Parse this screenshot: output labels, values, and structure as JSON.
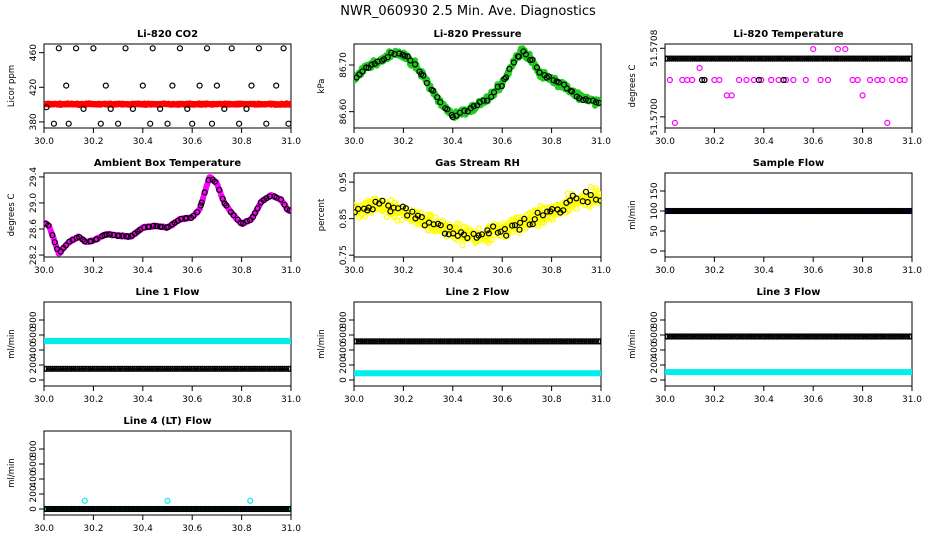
{
  "page": {
    "title": "NWR_060930  2.5 Min. Ave. Diagnostics"
  },
  "colors": {
    "black": "#000000",
    "red": "#ff0000",
    "green": "#22cc22",
    "magenta": "#ff00ff",
    "yellow": "#ffff00",
    "blue": "#0000cc",
    "cyan": "#00eeee"
  },
  "chart_data": [
    {
      "id": "co2",
      "type": "scatter",
      "title": "Li-820 CO2",
      "ylabel": "Licor ppm",
      "xlim": [
        30.0,
        31.0
      ],
      "ylim": [
        373,
        470
      ],
      "xticks": [
        "30.0",
        "30.2",
        "30.4",
        "30.6",
        "30.8",
        "31.0"
      ],
      "yticks": [
        {
          "v": 380,
          "label": "380"
        },
        {
          "v": 420,
          "label": "420"
        },
        {
          "v": 460,
          "label": "460"
        }
      ],
      "series": [
        {
          "name": "raw",
          "color": "red",
          "filled": true,
          "style": "band",
          "base": 400.5,
          "noise": 1.2,
          "n": 500
        },
        {
          "name": "ave",
          "color": "black",
          "filled": false,
          "style": "points",
          "x": [
            30.01,
            30.04,
            30.06,
            30.09,
            30.1,
            30.13,
            30.16,
            30.2,
            30.23,
            30.25,
            30.27,
            30.3,
            30.33,
            30.36,
            30.4,
            30.43,
            30.44,
            30.47,
            30.5,
            30.52,
            30.55,
            30.58,
            30.6,
            30.63,
            30.66,
            30.68,
            30.7,
            30.73,
            30.76,
            30.79,
            30.82,
            30.84,
            30.87,
            30.9,
            30.94,
            30.97,
            30.99
          ],
          "y": [
            397,
            378,
            465,
            422,
            378,
            465,
            395,
            465,
            378,
            422,
            395,
            378,
            465,
            395,
            422,
            378,
            465,
            395,
            378,
            422,
            465,
            395,
            378,
            422,
            465,
            378,
            422,
            395,
            465,
            378,
            395,
            422,
            465,
            378,
            422,
            465,
            378
          ]
        }
      ]
    },
    {
      "id": "pressure",
      "type": "scatter",
      "title": "Li-820 Pressure",
      "ylabel": "kPa",
      "xlim": [
        30.0,
        31.0
      ],
      "ylim": [
        86.565,
        86.745
      ],
      "xticks": [
        "30.0",
        "30.2",
        "30.4",
        "30.6",
        "30.8",
        "31.0"
      ],
      "yticks": [
        {
          "v": 86.6,
          "label": "86.60"
        },
        {
          "v": 86.7,
          "label": "86.70"
        }
      ],
      "series": [
        {
          "name": "raw",
          "color": "green",
          "filled": true,
          "style": "curve",
          "noise": 0.012,
          "n": 520,
          "knots_x": [
            30.0,
            30.05,
            30.1,
            30.15,
            30.2,
            30.25,
            30.3,
            30.35,
            30.4,
            30.45,
            30.5,
            30.55,
            30.6,
            30.65,
            30.68,
            30.72,
            30.75,
            30.8,
            30.85,
            30.9,
            30.95,
            31.0
          ],
          "knots_y": [
            86.67,
            86.695,
            86.705,
            86.725,
            86.72,
            86.7,
            86.66,
            86.62,
            86.59,
            86.6,
            86.615,
            86.63,
            86.66,
            86.71,
            86.73,
            86.71,
            86.685,
            86.67,
            86.655,
            86.635,
            86.625,
            86.62
          ]
        },
        {
          "name": "ave",
          "color": "black",
          "filled": false,
          "style": "curve",
          "noise": 0.006,
          "n": 75
        }
      ]
    },
    {
      "id": "temperature",
      "type": "scatter",
      "title": "Li-820 Temperature",
      "ylabel": "degrees C",
      "xlim": [
        30.0,
        31.0
      ],
      "ylim": [
        51.56987,
        51.57085
      ],
      "xticks": [
        "30.0",
        "30.2",
        "30.4",
        "30.6",
        "30.8",
        "31.0"
      ],
      "yticks": [
        {
          "v": 51.57,
          "label": "51.5700"
        },
        {
          "v": 51.5708,
          "label": "51.5708"
        }
      ],
      "series": [
        {
          "name": "raw",
          "color": "magenta",
          "filled": false,
          "style": "points",
          "x": [
            30.02,
            30.04,
            30.07,
            30.09,
            30.11,
            30.14,
            30.16,
            30.2,
            30.22,
            30.25,
            30.27,
            30.3,
            30.33,
            30.36,
            30.39,
            30.43,
            30.46,
            30.49,
            30.52,
            30.57,
            30.6,
            30.63,
            30.66,
            30.7,
            30.73,
            30.76,
            30.78,
            30.8,
            30.83,
            30.86,
            30.88,
            30.9,
            30.92,
            30.95,
            30.97
          ],
          "y": [
            51.57043,
            51.56993,
            51.57043,
            51.57043,
            51.57043,
            51.57057,
            51.57043,
            51.57043,
            51.57043,
            51.57025,
            51.57025,
            51.57043,
            51.57043,
            51.57043,
            51.57043,
            51.57043,
            51.57043,
            51.57043,
            51.57043,
            51.57043,
            51.57079,
            51.57043,
            51.57043,
            51.57079,
            51.57079,
            51.57043,
            51.57043,
            51.57025,
            51.57043,
            51.57043,
            51.57043,
            51.56993,
            51.57043,
            51.57043,
            51.57043
          ]
        },
        {
          "name": "ave",
          "color": "black",
          "filled": false,
          "style": "hline",
          "value": 51.57068,
          "n": 130
        },
        {
          "name": "ave2",
          "color": "black",
          "filled": false,
          "style": "points",
          "x": [
            30.15,
            30.16,
            30.38,
            30.48
          ],
          "y": [
            51.57043,
            51.57043,
            51.57043,
            51.57043
          ]
        }
      ]
    },
    {
      "id": "ambient",
      "type": "scatter",
      "title": "Ambient Box Temperature",
      "ylabel": "degrees C",
      "xlim": [
        30.0,
        31.0
      ],
      "ylim": [
        28.17,
        29.46
      ],
      "xticks": [
        "30.0",
        "30.2",
        "30.4",
        "30.6",
        "30.8",
        "31.0"
      ],
      "yticks": [
        {
          "v": 28.2,
          "label": "28.2"
        },
        {
          "v": 28.6,
          "label": "28.6"
        },
        {
          "v": 29.0,
          "label": "29.0"
        },
        {
          "v": 29.4,
          "label": "29.4"
        }
      ],
      "series": [
        {
          "name": "raw",
          "color": "magenta",
          "filled": true,
          "style": "curve",
          "noise": 0.015,
          "n": 520,
          "knots_x": [
            30.0,
            30.02,
            30.06,
            30.1,
            30.14,
            30.17,
            30.2,
            30.25,
            30.3,
            30.35,
            30.4,
            30.45,
            30.5,
            30.55,
            30.6,
            30.63,
            30.67,
            30.7,
            30.73,
            30.77,
            30.8,
            30.84,
            30.88,
            30.92,
            30.96,
            30.99
          ],
          "knots_y": [
            28.7,
            28.65,
            28.22,
            28.4,
            28.48,
            28.4,
            28.42,
            28.52,
            28.5,
            28.48,
            28.62,
            28.65,
            28.62,
            28.75,
            28.78,
            28.9,
            29.4,
            29.3,
            29.0,
            28.8,
            28.68,
            28.75,
            29.02,
            29.12,
            29.05,
            28.88
          ]
        },
        {
          "name": "ave",
          "color": "black",
          "filled": false,
          "style": "curve",
          "noise": 0.01,
          "n": 80
        }
      ]
    },
    {
      "id": "rh",
      "type": "scatter",
      "title": "Gas Stream RH",
      "ylabel": "percent",
      "xlim": [
        30.0,
        31.0
      ],
      "ylim": [
        0.745,
        0.975
      ],
      "xticks": [
        "30.0",
        "30.2",
        "30.4",
        "30.6",
        "30.8",
        "31.0"
      ],
      "yticks": [
        {
          "v": 0.75,
          "label": "0.75"
        },
        {
          "v": 0.85,
          "label": "0.85"
        },
        {
          "v": 0.95,
          "label": "0.95"
        }
      ],
      "series": [
        {
          "name": "raw",
          "color": "yellow",
          "filled": false,
          "style": "curve",
          "noise": 0.035,
          "n": 520,
          "knots_x": [
            30.0,
            30.1,
            30.2,
            30.3,
            30.4,
            30.5,
            30.6,
            30.7,
            30.8,
            30.9,
            31.0
          ],
          "knots_y": [
            0.875,
            0.885,
            0.87,
            0.84,
            0.815,
            0.8,
            0.815,
            0.845,
            0.87,
            0.9,
            0.915
          ]
        },
        {
          "name": "ave",
          "color": "black",
          "filled": false,
          "style": "curve",
          "noise": 0.025,
          "n": 70
        }
      ]
    },
    {
      "id": "sampleflow",
      "type": "scatter",
      "title": "Sample Flow",
      "ylabel": "ml/min",
      "xlim": [
        30.0,
        31.0
      ],
      "ylim": [
        -15,
        195
      ],
      "xticks": [
        "30.0",
        "30.2",
        "30.4",
        "30.6",
        "30.8",
        "31.0"
      ],
      "yticks": [
        {
          "v": 0,
          "label": "0"
        },
        {
          "v": 50,
          "label": "50"
        },
        {
          "v": 100,
          "label": "100"
        },
        {
          "v": 150,
          "label": "150"
        }
      ],
      "series": [
        {
          "name": "raw",
          "color": "blue",
          "filled": true,
          "style": "hline",
          "value": 100,
          "n": 300
        },
        {
          "name": "ave",
          "color": "black",
          "filled": false,
          "style": "hline",
          "value": 100,
          "n": 130
        }
      ]
    },
    {
      "id": "line1",
      "type": "scatter",
      "title": "Line 1 Flow",
      "ylabel": "ml/min",
      "xlim": [
        30.0,
        31.0
      ],
      "ylim": [
        -80,
        1040
      ],
      "xticks": [
        "30.0",
        "30.2",
        "30.4",
        "30.6",
        "30.8",
        "31.0"
      ],
      "yticks": [
        {
          "v": 0,
          "label": "0"
        },
        {
          "v": 200,
          "label": "200"
        },
        {
          "v": 400,
          "label": "400"
        },
        {
          "v": 600,
          "label": "600"
        },
        {
          "v": 800,
          "label": "800"
        }
      ],
      "series": [
        {
          "name": "raw",
          "color": "cyan",
          "filled": true,
          "style": "hline",
          "value": 520,
          "n": 300
        },
        {
          "name": "ave",
          "color": "black",
          "filled": false,
          "style": "hline",
          "value": 150,
          "n": 130
        }
      ]
    },
    {
      "id": "line2",
      "type": "scatter",
      "title": "Line 2 Flow",
      "ylabel": "ml/min",
      "xlim": [
        30.0,
        31.0
      ],
      "ylim": [
        -80,
        1040
      ],
      "xticks": [
        "30.0",
        "30.2",
        "30.4",
        "30.6",
        "30.8",
        "31.0"
      ],
      "yticks": [
        {
          "v": 0,
          "label": "0"
        },
        {
          "v": 200,
          "label": "200"
        },
        {
          "v": 400,
          "label": "400"
        },
        {
          "v": 600,
          "label": "600"
        },
        {
          "v": 800,
          "label": "800"
        }
      ],
      "series": [
        {
          "name": "raw",
          "color": "cyan",
          "filled": true,
          "style": "hline",
          "value": 90,
          "n": 300
        },
        {
          "name": "ave",
          "color": "black",
          "filled": false,
          "style": "hline",
          "value": 515,
          "n": 130
        }
      ]
    },
    {
      "id": "line3",
      "type": "scatter",
      "title": "Line 3 Flow",
      "ylabel": "ml/min",
      "xlim": [
        30.0,
        31.0
      ],
      "ylim": [
        -80,
        1040
      ],
      "xticks": [
        "30.0",
        "30.2",
        "30.4",
        "30.6",
        "30.8",
        "31.0"
      ],
      "yticks": [
        {
          "v": 0,
          "label": "0"
        },
        {
          "v": 200,
          "label": "200"
        },
        {
          "v": 400,
          "label": "400"
        },
        {
          "v": 600,
          "label": "600"
        },
        {
          "v": 800,
          "label": "800"
        }
      ],
      "series": [
        {
          "name": "raw",
          "color": "cyan",
          "filled": true,
          "style": "hline",
          "value": 105,
          "n": 300
        },
        {
          "name": "ave",
          "color": "black",
          "filled": false,
          "style": "hline",
          "value": 580,
          "n": 130
        }
      ]
    },
    {
      "id": "line4",
      "type": "scatter",
      "title": "Line 4 (LT) Flow",
      "ylabel": "ml/min",
      "xlim": [
        30.0,
        31.0
      ],
      "ylim": [
        -80,
        1040
      ],
      "xticks": [
        "30.0",
        "30.2",
        "30.4",
        "30.6",
        "30.8",
        "31.0"
      ],
      "yticks": [
        {
          "v": 0,
          "label": "0"
        },
        {
          "v": 200,
          "label": "200"
        },
        {
          "v": 400,
          "label": "400"
        },
        {
          "v": 600,
          "label": "600"
        },
        {
          "v": 800,
          "label": "800"
        }
      ],
      "series": [
        {
          "name": "raw",
          "color": "cyan",
          "filled": false,
          "style": "points",
          "x": [
            30.165,
            30.5,
            30.835
          ],
          "y": [
            110,
            110,
            110
          ]
        },
        {
          "name": "base",
          "color": "cyan",
          "filled": true,
          "style": "hline",
          "value": 0,
          "n": 200
        },
        {
          "name": "ave",
          "color": "black",
          "filled": false,
          "style": "hline",
          "value": 0,
          "n": 130
        }
      ]
    }
  ]
}
